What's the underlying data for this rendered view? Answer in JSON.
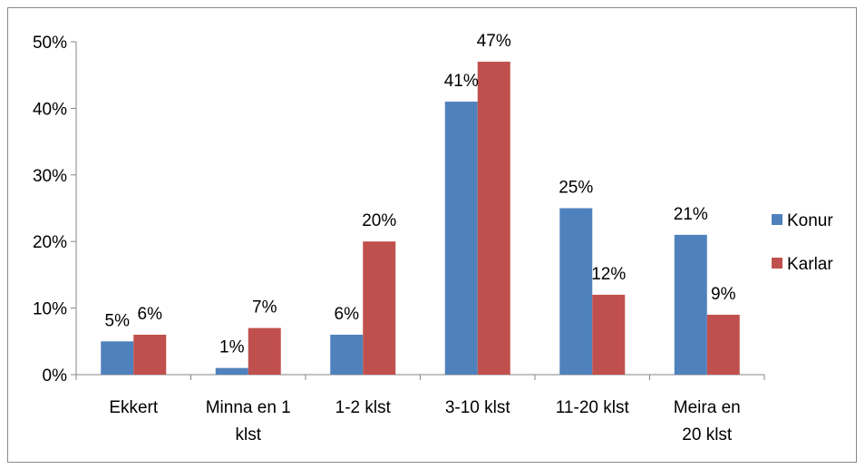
{
  "chart_data": {
    "type": "bar",
    "title": "",
    "xlabel": "",
    "ylabel": "",
    "categories": [
      [
        "Ekkert"
      ],
      [
        "Minna en 1",
        "klst"
      ],
      [
        "1-2 klst"
      ],
      [
        "3-10 klst"
      ],
      [
        "11-20 klst"
      ],
      [
        "Meira en",
        "20 klst"
      ]
    ],
    "series": [
      {
        "name": "Konur",
        "color": "#4F81BD",
        "values": [
          5,
          1,
          6,
          41,
          25,
          21
        ],
        "labels": [
          "5%",
          "1%",
          "6%",
          "41%",
          "25%",
          "21%"
        ]
      },
      {
        "name": "Karlar",
        "color": "#C0504D",
        "values": [
          6,
          7,
          20,
          47,
          12,
          9
        ],
        "labels": [
          "6%",
          "7%",
          "20%",
          "47%",
          "12%",
          "9%"
        ]
      }
    ],
    "ylim": [
      0,
      50
    ],
    "yticks": [
      0,
      10,
      20,
      30,
      40,
      50
    ],
    "ytick_labels": [
      "0%",
      "10%",
      "20%",
      "30%",
      "40%",
      "50%"
    ],
    "grid": false,
    "legend_position": "right"
  }
}
